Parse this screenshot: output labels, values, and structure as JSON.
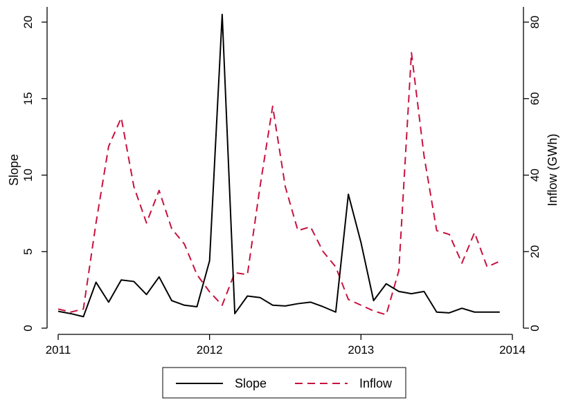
{
  "chart_data": {
    "type": "line",
    "title": "",
    "xlabel": "",
    "x_ticks": [
      "2011",
      "2012",
      "2013",
      "2014"
    ],
    "xlim": [
      "2011-01",
      "2014-01"
    ],
    "y_left": {
      "label": "Slope",
      "lim": [
        0,
        20
      ],
      "ticks": [
        "0",
        "5",
        "10",
        "15",
        "20"
      ]
    },
    "y_right": {
      "label": "Inflow (GWh)",
      "lim": [
        0,
        80
      ],
      "ticks": [
        "0",
        "20",
        "40",
        "60",
        "80"
      ]
    },
    "grid": false,
    "legend_position": "bottom",
    "x": [
      "2011-01",
      "2011-02",
      "2011-03",
      "2011-04",
      "2011-05",
      "2011-06",
      "2011-07",
      "2011-08",
      "2011-09",
      "2011-10",
      "2011-11",
      "2011-12",
      "2012-01",
      "2012-02",
      "2012-03",
      "2012-04",
      "2012-05",
      "2012-06",
      "2012-07",
      "2012-08",
      "2012-09",
      "2012-10",
      "2012-11",
      "2012-12",
      "2013-01",
      "2013-02",
      "2013-03",
      "2013-04",
      "2013-05",
      "2013-06",
      "2013-07",
      "2013-08",
      "2013-09",
      "2013-10",
      "2013-11",
      "2013-12"
    ],
    "series": [
      {
        "name": "Slope",
        "axis": "left",
        "color": "#000000",
        "dash": "solid",
        "values": [
          1.1,
          0.95,
          0.75,
          3.0,
          1.7,
          3.15,
          3.05,
          2.2,
          3.35,
          1.8,
          1.5,
          1.4,
          4.4,
          20.5,
          0.95,
          2.1,
          2.0,
          1.5,
          1.45,
          1.6,
          1.7,
          1.4,
          1.05,
          8.75,
          5.6,
          1.8,
          2.9,
          2.4,
          2.25,
          2.4,
          1.05,
          1.0,
          1.3,
          1.05,
          1.05,
          1.05
        ]
      },
      {
        "name": "Inflow",
        "axis": "right",
        "color": "#c8103e",
        "dash": "dashed",
        "values": [
          5.0,
          4.2,
          5.0,
          27.5,
          47.5,
          55.0,
          37.0,
          27.5,
          36.0,
          26.0,
          22.0,
          14.0,
          9.5,
          6.0,
          14.5,
          14.0,
          37.0,
          58.0,
          37.0,
          25.5,
          26.5,
          20.0,
          16.0,
          7.5,
          6.0,
          4.5,
          3.5,
          15.0,
          72.0,
          45.0,
          25.5,
          24.5,
          17.0,
          25.0,
          16.0,
          17.5
        ]
      }
    ]
  },
  "legend": {
    "items": [
      "Slope",
      "Inflow"
    ]
  }
}
